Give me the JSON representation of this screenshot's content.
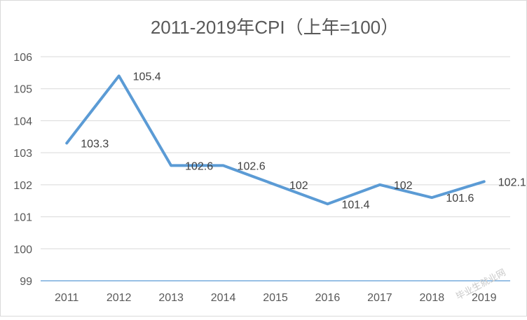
{
  "chart_data": {
    "type": "line",
    "title": "2011-2019年CPI（上年=100）",
    "categories": [
      "2011",
      "2012",
      "2013",
      "2014",
      "2015",
      "2016",
      "2017",
      "2018",
      "2019"
    ],
    "series": [
      {
        "values": [
          103.3,
          105.4,
          102.6,
          102.6,
          102.0,
          101.4,
          102.0,
          101.6,
          102.1
        ],
        "data_labels": [
          "103.3",
          "105.4",
          "102.6",
          "102.6",
          "102",
          "101.4",
          "102",
          "101.6",
          "102.1"
        ],
        "color": "#5b9bd5"
      }
    ],
    "ylim": [
      99,
      106
    ],
    "yticks": [
      "99",
      "100",
      "101",
      "102",
      "103",
      "104",
      "105",
      "106"
    ],
    "grid": true,
    "legend": "none"
  },
  "colors": {
    "line": "#5b9bd5",
    "grid": "#d9d9d9",
    "baseline": "#5b9bd5",
    "text": "#595959"
  },
  "watermark": "毕业生就业网"
}
